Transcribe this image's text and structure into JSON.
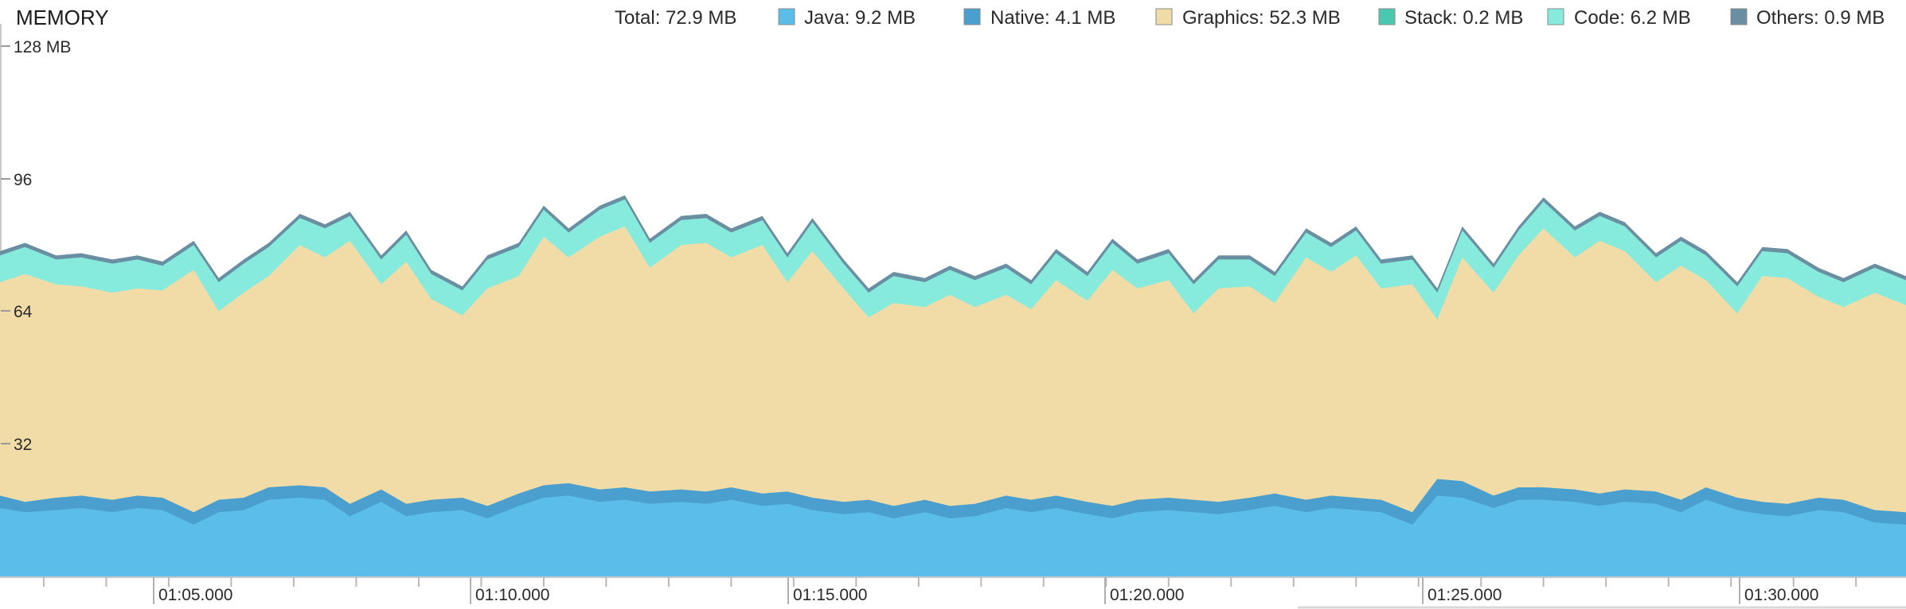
{
  "panel": {
    "title": "MEMORY"
  },
  "legend": {
    "total": "Total: 72.9 MB",
    "items": [
      {
        "label": "Java: 9.2 MB",
        "color": "#5bbde9"
      },
      {
        "label": "Native: 4.1 MB",
        "color": "#4b9fcf"
      },
      {
        "label": "Graphics: 52.3 MB",
        "color": "#f1dca7"
      },
      {
        "label": "Stack: 0.2 MB",
        "color": "#4ac9b0"
      },
      {
        "label": "Code: 6.2 MB",
        "color": "#86eadd"
      },
      {
        "label": "Others: 0.9 MB",
        "color": "#6a8fa3"
      }
    ]
  },
  "chart_data": {
    "type": "area",
    "stacked": true,
    "title": "MEMORY",
    "ylabel": "MB",
    "ylim": [
      0,
      128
    ],
    "y_ticks": [
      {
        "value": 128,
        "label": "128 MB"
      },
      {
        "value": 96,
        "label": "96"
      },
      {
        "value": 64,
        "label": "64"
      },
      {
        "value": 32,
        "label": "32"
      }
    ],
    "x_labels": [
      "01:05.000",
      "01:10.000",
      "01:15.000",
      "01:20.000",
      "01:25.000",
      "01:30.000"
    ],
    "x_range_seconds": [
      60.3,
      90.8
    ],
    "series_order": [
      "Java",
      "Native",
      "Graphics",
      "Stack",
      "Code",
      "Others"
    ],
    "series_colors": {
      "Java": "#5bbde9",
      "Native": "#4b9fcf",
      "Graphics": "#f1dca7",
      "Stack": "#4ac9b0",
      "Code": "#86eadd",
      "Others": "#6a8fa3"
    },
    "samples": {
      "x_seconds": [
        60.3,
        60.7,
        61.2,
        61.6,
        62.1,
        62.5,
        62.9,
        63.4,
        63.8,
        64.2,
        64.6,
        65.1,
        65.5,
        65.9,
        66.4,
        66.8,
        67.2,
        67.7,
        68.1,
        68.6,
        69.0,
        69.4,
        69.9,
        70.3,
        70.7,
        71.2,
        71.6,
        72.0,
        72.5,
        72.9,
        73.3,
        73.8,
        74.2,
        74.6,
        75.1,
        75.5,
        75.9,
        76.4,
        76.8,
        77.2,
        77.7,
        78.1,
        78.5,
        79.0,
        79.4,
        79.8,
        80.3,
        80.7,
        81.2,
        81.6,
        82.0,
        82.4,
        82.9,
        83.3,
        83.7,
        84.2,
        84.6,
        85.0,
        85.5,
        85.9,
        86.3,
        86.8,
        87.2,
        87.6,
        88.1,
        88.5,
        88.9,
        89.4,
        89.8,
        90.3,
        90.8
      ],
      "top_mb": [
        78.5,
        80.5,
        77.5,
        78.0,
        76.5,
        77.5,
        76.0,
        81.0,
        72.0,
        76.5,
        80.5,
        87.5,
        85.0,
        88.0,
        77.5,
        83.5,
        74.0,
        70.0,
        77.5,
        80.5,
        89.5,
        84.0,
        89.5,
        92.0,
        81.5,
        87.0,
        87.5,
        84.0,
        87.0,
        78.0,
        86.5,
        76.5,
        69.5,
        73.5,
        72.0,
        75.0,
        72.5,
        75.5,
        71.5,
        79.0,
        73.5,
        81.5,
        76.5,
        79.0,
        71.5,
        77.5,
        77.5,
        73.5,
        84.0,
        80.5,
        84.5,
        76.5,
        77.5,
        69.5,
        84.5,
        75.5,
        84.5,
        91.5,
        84.5,
        88.0,
        85.5,
        78.0,
        82.0,
        78.5,
        71.0,
        79.5,
        79.0,
        74.5,
        72.0,
        75.5,
        72.5
      ],
      "graphics_top_mb": [
        71.0,
        73.0,
        70.5,
        70.0,
        68.5,
        69.5,
        69.0,
        74.0,
        64.0,
        68.5,
        72.5,
        80.0,
        77.0,
        81.0,
        70.5,
        76.0,
        67.0,
        63.0,
        69.5,
        72.5,
        82.0,
        77.0,
        82.0,
        84.5,
        74.5,
        80.0,
        80.5,
        77.0,
        80.0,
        71.0,
        78.5,
        69.5,
        62.5,
        66.0,
        65.0,
        68.0,
        65.0,
        68.0,
        64.5,
        71.5,
        66.5,
        74.0,
        69.5,
        71.5,
        63.5,
        69.5,
        70.0,
        66.0,
        77.0,
        73.5,
        77.5,
        69.5,
        70.5,
        62.0,
        77.0,
        68.5,
        77.5,
        84.0,
        77.0,
        81.0,
        78.5,
        71.0,
        75.0,
        71.5,
        63.5,
        72.5,
        72.0,
        67.5,
        65.0,
        68.5,
        65.5
      ],
      "native_top_mb": [
        19.5,
        18.0,
        19.0,
        19.5,
        18.5,
        19.5,
        19.0,
        15.5,
        18.5,
        19.0,
        21.5,
        22.0,
        21.5,
        17.5,
        21.0,
        17.5,
        18.5,
        19.0,
        17.0,
        20.0,
        22.0,
        22.5,
        21.0,
        21.5,
        20.5,
        21.0,
        20.5,
        21.5,
        20.0,
        20.5,
        19.0,
        18.0,
        18.5,
        17.0,
        18.5,
        17.0,
        17.5,
        19.5,
        18.5,
        19.5,
        18.0,
        17.0,
        18.5,
        19.0,
        18.5,
        18.0,
        19.0,
        20.0,
        18.5,
        19.5,
        19.0,
        18.5,
        15.5,
        23.5,
        23.0,
        19.5,
        21.5,
        21.5,
        21.0,
        20.0,
        21.0,
        20.5,
        18.5,
        21.5,
        19.0,
        18.0,
        17.5,
        19.0,
        18.5,
        16.0,
        15.5
      ],
      "java_top_mb": [
        16.5,
        15.5,
        16.0,
        16.5,
        15.5,
        16.5,
        16.0,
        12.5,
        15.5,
        16.0,
        18.5,
        19.0,
        18.5,
        14.5,
        18.0,
        14.5,
        15.5,
        16.0,
        14.0,
        17.0,
        19.0,
        19.5,
        18.0,
        18.5,
        17.5,
        18.0,
        17.5,
        18.5,
        17.0,
        17.5,
        16.0,
        15.0,
        15.5,
        14.0,
        15.5,
        14.0,
        14.5,
        16.5,
        15.5,
        16.5,
        15.0,
        14.0,
        15.5,
        16.0,
        15.5,
        15.0,
        16.0,
        17.0,
        15.5,
        16.5,
        16.0,
        15.5,
        12.5,
        19.5,
        19.0,
        16.5,
        18.5,
        18.5,
        18.0,
        17.0,
        18.0,
        17.5,
        15.5,
        18.5,
        16.0,
        15.0,
        14.5,
        16.0,
        15.5,
        13.0,
        12.5
      ]
    }
  }
}
